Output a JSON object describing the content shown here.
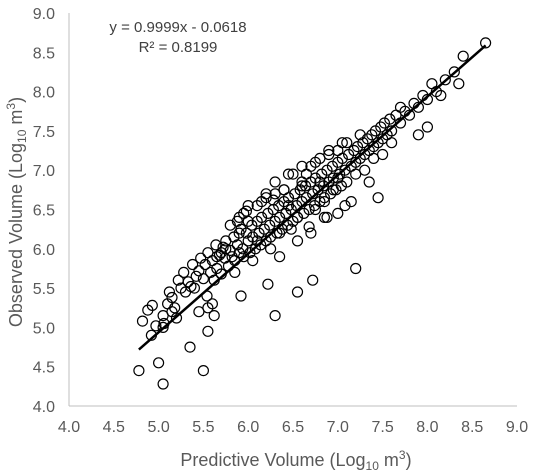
{
  "chart_data": {
    "type": "scatter",
    "title": "",
    "xlabel": {
      "prefix": "Predictive Volume (Log",
      "subscript": "10",
      "suffix": " m",
      "superscript": "3",
      "close": ")"
    },
    "ylabel": {
      "prefix": "Observed Volume (Log",
      "subscript": "10",
      "suffix": " m",
      "superscript": "3",
      "close": ")"
    },
    "xlim": [
      4.0,
      9.0
    ],
    "ylim": [
      4.0,
      9.0
    ],
    "xticks": [
      "4.0",
      "4.5",
      "5.0",
      "5.5",
      "6.0",
      "6.5",
      "7.0",
      "7.5",
      "8.0",
      "8.5",
      "9.0"
    ],
    "yticks": [
      "4.0",
      "4.5",
      "5.0",
      "5.5",
      "6.0",
      "6.5",
      "7.0",
      "7.5",
      "8.0",
      "8.5",
      "9.0"
    ],
    "grid": false,
    "legend": "none",
    "annotations": {
      "equation": "y = 0.9999x - 0.0618",
      "r2": "R² = 0.8199"
    },
    "trendline": {
      "slope": 0.9999,
      "intercept": -0.0618,
      "x_range": [
        4.78,
        8.65
      ]
    },
    "series": [
      {
        "marker": "open-circle",
        "x": [
          4.78,
          4.82,
          4.88,
          4.93,
          4.97,
          5.0,
          5.05,
          5.06,
          5.1,
          5.12,
          5.15,
          5.18,
          5.2,
          5.22,
          5.25,
          5.28,
          5.3,
          5.33,
          5.36,
          5.38,
          5.4,
          5.42,
          5.45,
          5.47,
          5.5,
          5.52,
          5.54,
          5.55,
          5.58,
          5.6,
          5.62,
          5.64,
          5.65,
          5.68,
          5.7,
          5.72,
          5.74,
          5.75,
          5.78,
          5.8,
          5.82,
          5.84,
          5.85,
          5.88,
          5.9,
          5.92,
          5.94,
          5.95,
          5.98,
          6.0,
          6.02,
          6.04,
          6.05,
          6.08,
          6.1,
          6.12,
          6.14,
          6.15,
          6.18,
          6.2,
          6.22,
          6.24,
          6.25,
          6.28,
          6.3,
          6.32,
          6.34,
          6.35,
          6.38,
          6.4,
          6.42,
          6.44,
          6.45,
          6.48,
          6.5,
          6.52,
          6.54,
          6.55,
          6.58,
          6.6,
          6.62,
          6.64,
          6.65,
          6.68,
          6.7,
          6.72,
          6.74,
          6.75,
          6.78,
          6.8,
          6.82,
          6.84,
          6.85,
          6.88,
          6.9,
          6.92,
          6.94,
          6.95,
          6.98,
          7.0,
          7.02,
          7.04,
          7.05,
          7.08,
          7.1,
          7.12,
          7.15,
          7.18,
          7.2,
          7.22,
          7.25,
          7.28,
          7.3,
          7.33,
          7.35,
          7.38,
          7.4,
          7.42,
          7.45,
          7.48,
          7.5,
          7.52,
          7.55,
          7.58,
          7.6,
          7.65,
          7.7,
          7.75,
          7.8,
          7.85,
          7.9,
          7.95,
          8.0,
          8.05,
          8.1,
          8.2,
          8.3,
          8.35,
          8.4,
          8.65,
          5.45,
          5.55,
          5.6,
          5.7,
          5.75,
          5.85,
          5.9,
          6.0,
          6.05,
          6.1,
          6.2,
          6.25,
          6.3,
          6.35,
          6.4,
          6.45,
          6.5,
          6.55,
          6.6,
          6.65,
          6.7,
          6.75,
          6.8,
          6.85,
          6.9,
          6.95,
          7.0,
          7.1,
          7.2,
          7.3,
          7.4,
          7.5,
          7.6,
          7.7,
          5.8,
          5.95,
          6.15,
          6.3,
          6.45,
          6.6,
          6.75,
          6.9,
          7.05,
          7.25,
          5.65,
          5.9,
          6.1,
          6.35,
          6.55,
          6.7,
          6.85,
          7.0,
          7.15,
          7.35,
          6.0,
          6.2,
          6.4,
          6.6,
          6.8,
          7.0,
          5.88,
          5.98,
          6.28,
          6.48,
          6.68,
          6.88,
          7.08,
          4.92,
          5.05,
          5.05,
          5.55,
          5.15,
          5.62,
          5.92,
          6.22,
          6.72,
          7.45,
          7.9,
          8.0,
          8.15,
          5.35,
          5.5,
          6.3,
          6.55,
          7.2
        ],
        "y": [
          4.45,
          5.08,
          5.22,
          5.28,
          5.02,
          4.55,
          4.28,
          5.05,
          5.3,
          5.45,
          5.38,
          5.25,
          5.12,
          5.6,
          5.5,
          5.7,
          5.45,
          5.58,
          5.52,
          5.8,
          5.5,
          5.65,
          5.72,
          5.88,
          5.62,
          5.8,
          5.4,
          5.95,
          5.7,
          5.85,
          5.6,
          6.05,
          5.75,
          5.92,
          5.68,
          6.02,
          5.88,
          6.1,
          5.78,
          5.98,
          5.9,
          6.15,
          5.85,
          6.05,
          5.95,
          6.25,
          6.0,
          5.9,
          6.2,
          6.1,
          5.95,
          6.3,
          6.15,
          6.0,
          6.35,
          6.2,
          6.05,
          6.4,
          6.25,
          6.1,
          6.45,
          6.3,
          6.15,
          6.5,
          6.35,
          6.2,
          6.55,
          6.4,
          6.25,
          6.6,
          6.45,
          6.3,
          6.65,
          6.5,
          6.35,
          6.7,
          6.55,
          6.4,
          6.75,
          6.6,
          6.45,
          6.8,
          6.65,
          6.5,
          6.85,
          6.7,
          6.55,
          6.9,
          6.75,
          6.6,
          6.95,
          6.8,
          6.65,
          7.0,
          6.85,
          6.7,
          7.05,
          6.9,
          6.75,
          7.1,
          6.95,
          6.8,
          7.15,
          7.0,
          6.85,
          7.2,
          7.05,
          7.25,
          7.1,
          7.3,
          7.15,
          7.35,
          7.2,
          7.4,
          7.25,
          7.45,
          7.3,
          7.5,
          7.35,
          7.55,
          7.4,
          7.6,
          7.45,
          7.65,
          7.5,
          7.7,
          7.6,
          7.75,
          7.7,
          7.85,
          7.8,
          7.95,
          7.9,
          8.1,
          8.0,
          8.15,
          8.25,
          8.1,
          8.45,
          8.62,
          5.2,
          5.25,
          5.3,
          5.95,
          6.0,
          5.7,
          6.4,
          6.35,
          5.85,
          6.55,
          6.65,
          6.0,
          6.7,
          6.2,
          6.75,
          6.55,
          6.95,
          6.4,
          6.85,
          6.95,
          7.05,
          6.5,
          7.15,
          6.6,
          7.2,
          6.75,
          7.25,
          7.35,
          6.95,
          7.0,
          7.15,
          7.2,
          7.35,
          7.8,
          6.3,
          6.45,
          6.6,
          6.85,
          6.95,
          7.05,
          7.1,
          7.25,
          7.35,
          7.45,
          5.9,
          6.2,
          6.1,
          5.9,
          6.1,
          6.2,
          6.4,
          6.45,
          6.6,
          6.85,
          6.55,
          6.7,
          6.75,
          6.8,
          6.85,
          6.9,
          6.35,
          6.48,
          6.62,
          6.25,
          6.28,
          6.4,
          6.55,
          4.9,
          5.15,
          5.0,
          4.95,
          5.2,
          5.15,
          5.4,
          5.55,
          5.6,
          6.65,
          7.45,
          7.55,
          7.95,
          4.75,
          4.45,
          5.15,
          5.45,
          5.75
        ]
      }
    ]
  }
}
